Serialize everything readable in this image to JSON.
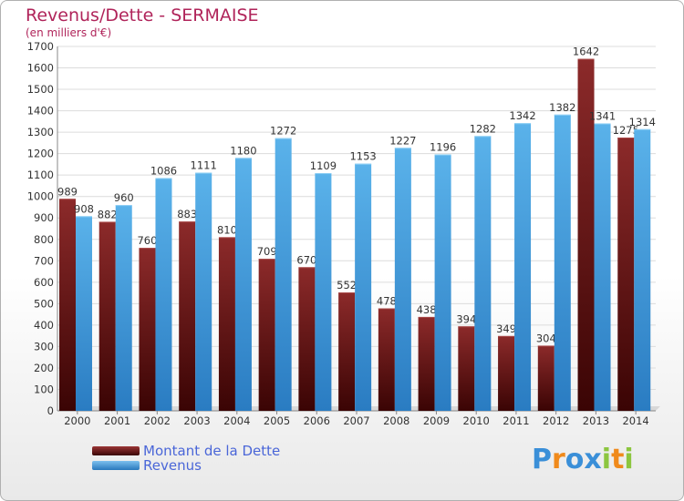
{
  "header": {
    "title": "Revenus/Dette - SERMAISE",
    "subtitle": "(en milliers d'€)"
  },
  "logo": {
    "text": "Proxiti",
    "letters": [
      {
        "ch": "P",
        "color": "#3a8fd8"
      },
      {
        "ch": "r",
        "color": "#f08a1c"
      },
      {
        "ch": "o",
        "color": "#3a8fd8"
      },
      {
        "ch": "x",
        "color": "#3a8fd8"
      },
      {
        "ch": "i",
        "color": "#8cc63f"
      },
      {
        "ch": "t",
        "color": "#f08a1c"
      },
      {
        "ch": "i",
        "color": "#8cc63f"
      }
    ]
  },
  "chart_data": {
    "type": "bar",
    "title": "Revenus/Dette - SERMAISE",
    "subtitle": "(en milliers d'€)",
    "categories": [
      "2000",
      "2001",
      "2002",
      "2003",
      "2004",
      "2005",
      "2006",
      "2007",
      "2008",
      "2009",
      "2010",
      "2011",
      "2012",
      "2013",
      "2014"
    ],
    "series": [
      {
        "name": "Montant de la Dette",
        "color": "#7a1f1f",
        "values": [
          989,
          882,
          760,
          883,
          810,
          709,
          670,
          552,
          478,
          438,
          394,
          349,
          304,
          1642,
          1275
        ]
      },
      {
        "name": "Revenus",
        "color": "#4aa3e0",
        "values": [
          908,
          960,
          1086,
          1111,
          1180,
          1272,
          1109,
          1153,
          1227,
          1196,
          1282,
          1342,
          1382,
          1341,
          1314
        ]
      }
    ],
    "value_labels": [
      [
        "989",
        "882",
        "760",
        "883",
        "810",
        "709",
        "670",
        "552",
        "478",
        "438",
        "394",
        "349",
        "304",
        "1642",
        "1275"
      ],
      [
        "908",
        "960",
        "1086",
        "1111",
        "1180",
        "1272",
        "1109",
        "1153",
        "1227",
        "1196",
        "1282",
        "1342",
        "1382",
        "1341",
        "1314"
      ]
    ],
    "ylim": [
      0,
      1700
    ],
    "yticks": [
      0,
      100,
      200,
      300,
      400,
      500,
      600,
      700,
      800,
      900,
      1000,
      1100,
      1200,
      1300,
      1400,
      1500,
      1600,
      1700
    ],
    "grid": true,
    "legend_position": "bottom-left"
  }
}
